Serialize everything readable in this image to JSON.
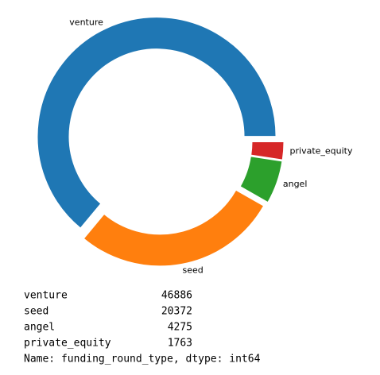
{
  "chart_data": {
    "type": "pie",
    "categories": [
      "venture",
      "seed",
      "angel",
      "private_equity"
    ],
    "values": [
      46886,
      20372,
      4275,
      1763
    ],
    "colors": [
      "#1f77b4",
      "#ff7f0e",
      "#2ca02c",
      "#d62728"
    ],
    "donut": true
  },
  "output": {
    "footer": "Name: funding_round_type, dtype: int64"
  }
}
